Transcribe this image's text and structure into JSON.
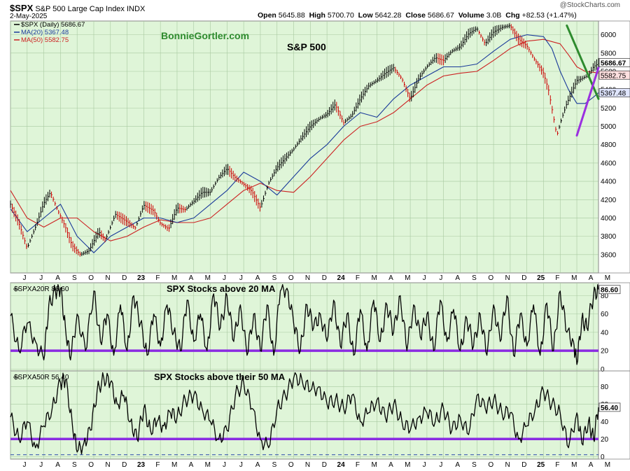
{
  "header": {
    "symbol": "$SPX",
    "name": "S&P 500 Large Cap Index",
    "exchange": "INDX",
    "date": "2-May-2025",
    "watermark": "@StockCharts.com",
    "ohlc": {
      "open_label": "Open",
      "open": "5645.88",
      "high_label": "High",
      "high": "5700.70",
      "low_label": "Low",
      "low": "5642.28",
      "close_label": "Close",
      "close": "5686.67",
      "volume_label": "Volume",
      "volume": "3.0B",
      "chg_label": "Chg",
      "chg": "+82.53 (+1.47%)"
    }
  },
  "colors": {
    "panel_bg": "#dff5d8",
    "grid": "#a8c9a0",
    "price": "#000000",
    "down_bar": "#cc0000",
    "ma20": "#1a3a9a",
    "ma50": "#cc2222",
    "threshold": "#8a2be2",
    "trend_down": "#2e8b2e",
    "trend_up": "#9b30e0",
    "brand": "#2e8b2e"
  },
  "chart_data": [
    {
      "type": "line",
      "panel": "price",
      "brand": "BonnieGortler.com",
      "title": "S&P 500",
      "legend": [
        {
          "label": "$SPX (Daily) 5686.67",
          "color": "#000000"
        },
        {
          "label": "MA(20) 5367.48",
          "color": "#1a3a9a"
        },
        {
          "label": "MA(50) 5582.75",
          "color": "#cc2222"
        }
      ],
      "legend_position": "top-left",
      "x_labels": [
        "J",
        "J",
        "A",
        "S",
        "O",
        "N",
        "D",
        "23",
        "F",
        "M",
        "A",
        "M",
        "J",
        "J",
        "A",
        "S",
        "O",
        "N",
        "D",
        "24",
        "F",
        "M",
        "A",
        "M",
        "J",
        "J",
        "A",
        "S",
        "O",
        "N",
        "D",
        "25",
        "F",
        "M",
        "A",
        "M"
      ],
      "x_range": [
        0,
        35.3
      ],
      "ylim": [
        3400,
        6150
      ],
      "y_ticks": [
        3600,
        3800,
        4000,
        4200,
        4400,
        4600,
        4800,
        5000,
        5200,
        5400,
        5600,
        5800,
        6000
      ],
      "grid": true,
      "price_tags": [
        {
          "label": "5686.67",
          "value": 5686.67
        },
        {
          "label": "5582.75",
          "value": 5582.75
        },
        {
          "label": "5367.48",
          "value": 5367.48
        }
      ],
      "price_series": {
        "name": "$SPX",
        "x": [
          0,
          0.5,
          1,
          1.5,
          2,
          2.4,
          2.8,
          3.3,
          3.7,
          4.2,
          4.7,
          5.3,
          5.7,
          6.3,
          7,
          7.5,
          8,
          8.6,
          9,
          9.5,
          10,
          10.5,
          11,
          11.5,
          12,
          12.5,
          13,
          13.5,
          14,
          14.5,
          15,
          15.5,
          16,
          16.5,
          17,
          17.5,
          18,
          18.6,
          19,
          19.5,
          20,
          20.5,
          21,
          21.5,
          22,
          22.5,
          23,
          23.5,
          24,
          24.5,
          25,
          25.5,
          26,
          26.5,
          27,
          27.5,
          28,
          28.5,
          29,
          29.5,
          30,
          30.5,
          31,
          31.4,
          32,
          32.3,
          32.8,
          33.1,
          33.4,
          33.7,
          34,
          34.3,
          34.7,
          35,
          35.3
        ],
        "values": [
          4150,
          3950,
          3670,
          3900,
          4160,
          4280,
          4100,
          3900,
          3700,
          3600,
          3640,
          3850,
          3760,
          4040,
          3960,
          3890,
          4140,
          4080,
          3940,
          3880,
          4110,
          4090,
          4180,
          4280,
          4280,
          4440,
          4540,
          4440,
          4370,
          4290,
          4110,
          4380,
          4550,
          4650,
          4750,
          4880,
          5000,
          5090,
          5130,
          5240,
          5040,
          5120,
          5300,
          5440,
          5500,
          5580,
          5640,
          5520,
          5300,
          5520,
          5650,
          5750,
          5720,
          5820,
          5870,
          6010,
          6070,
          5900,
          6030,
          6080,
          6100,
          5950,
          5880,
          5750,
          5580,
          5400,
          4900,
          5090,
          5250,
          5375,
          5500,
          5520,
          5560,
          5650,
          5686
        ]
      },
      "ma20_series": {
        "name": "MA(20)",
        "x": [
          0,
          1,
          2,
          3,
          4,
          5,
          6,
          7,
          8,
          9,
          10,
          11,
          12,
          13,
          14,
          15,
          16,
          17,
          18,
          19,
          20,
          21,
          22,
          23,
          24,
          25,
          26,
          27,
          28,
          29,
          30,
          31,
          32,
          32.5,
          33,
          33.5,
          34,
          34.5,
          35,
          35.3
        ],
        "values": [
          4100,
          3850,
          4000,
          4150,
          3800,
          3620,
          3800,
          3900,
          4000,
          4000,
          3950,
          4000,
          4150,
          4300,
          4500,
          4400,
          4250,
          4450,
          4650,
          4800,
          5000,
          5150,
          5100,
          5300,
          5450,
          5550,
          5650,
          5650,
          5680,
          5820,
          5950,
          6000,
          5980,
          5850,
          5600,
          5400,
          5250,
          5250,
          5320,
          5367
        ]
      },
      "ma50_series": {
        "name": "MA(50)",
        "x": [
          0,
          1,
          2,
          3,
          4,
          5,
          6,
          7,
          8,
          9,
          10,
          11,
          12,
          13,
          14,
          15,
          16,
          17,
          18,
          19,
          20,
          21,
          22,
          23,
          24,
          25,
          26,
          27,
          28,
          29,
          30,
          31,
          32,
          33,
          33.5,
          34,
          34.5,
          35,
          35.3
        ],
        "values": [
          4300,
          4000,
          3900,
          4000,
          4000,
          3850,
          3750,
          3800,
          3900,
          3980,
          3950,
          3950,
          4000,
          4150,
          4300,
          4380,
          4300,
          4280,
          4450,
          4650,
          4850,
          5000,
          5050,
          5150,
          5300,
          5450,
          5550,
          5580,
          5600,
          5720,
          5850,
          5930,
          5950,
          5900,
          5780,
          5650,
          5600,
          5590,
          5582
        ]
      },
      "trendlines": [
        {
          "name": "downtrend",
          "x": [
            33.4,
            35.3
          ],
          "values": [
            6100,
            5300
          ]
        },
        {
          "name": "uptrend",
          "x": [
            34.0,
            35.3
          ],
          "values": [
            4900,
            5640
          ]
        }
      ]
    },
    {
      "type": "line",
      "panel": "spxa20r",
      "title": "SPX Stocks above 20 MA",
      "legend_label": "$SPXA20R 86.60",
      "last_label": "86.60",
      "last_value": 86.6,
      "ylim": [
        -2,
        94
      ],
      "y_ticks": [
        0,
        20,
        40,
        60,
        80
      ],
      "threshold": 20,
      "x": [
        0,
        0.5,
        1,
        1.5,
        2,
        2.3,
        2.7,
        3,
        3.3,
        3.6,
        4,
        4.5,
        5,
        5.4,
        5.8,
        6.2,
        6.6,
        7,
        7.4,
        7.8,
        8.2,
        8.6,
        9,
        9.4,
        9.8,
        10.2,
        10.6,
        11,
        11.4,
        11.8,
        12.2,
        12.6,
        13,
        13.4,
        13.8,
        14.2,
        14.6,
        15,
        15.4,
        15.8,
        16.2,
        16.6,
        17,
        17.4,
        17.8,
        18.2,
        18.6,
        19,
        19.4,
        19.8,
        20.2,
        20.6,
        21,
        21.4,
        21.8,
        22.2,
        22.6,
        23,
        23.4,
        23.8,
        24.2,
        24.6,
        25,
        25.4,
        25.8,
        26.2,
        26.6,
        27,
        27.4,
        27.8,
        28.2,
        28.6,
        29,
        29.4,
        29.8,
        30.2,
        30.6,
        31,
        31.4,
        31.8,
        32.2,
        32.6,
        33,
        33.4,
        33.8,
        34,
        34.3,
        34.6,
        35,
        35.3
      ],
      "values": [
        58,
        20,
        50,
        30,
        10,
        70,
        85,
        88,
        45,
        10,
        60,
        20,
        85,
        30,
        60,
        15,
        70,
        20,
        80,
        50,
        15,
        60,
        25,
        70,
        40,
        20,
        75,
        30,
        60,
        20,
        82,
        45,
        80,
        30,
        70,
        15,
        60,
        20,
        70,
        15,
        85,
        88,
        50,
        20,
        70,
        45,
        60,
        30,
        75,
        25,
        60,
        15,
        65,
        20,
        75,
        30,
        70,
        40,
        80,
        20,
        70,
        35,
        60,
        20,
        75,
        30,
        65,
        20,
        55,
        25,
        60,
        15,
        70,
        30,
        80,
        15,
        60,
        25,
        70,
        15,
        72,
        20,
        85,
        40,
        30,
        5,
        55,
        45,
        80,
        86.6
      ]
    },
    {
      "type": "line",
      "panel": "spxa50r",
      "title": "SPX Stocks above their 50 MA",
      "legend_label": "$SPXA50R 56.40",
      "last_label": "56.40",
      "last_value": 56.4,
      "ylim": [
        -3,
        98
      ],
      "y_ticks": [
        0,
        20,
        40,
        60,
        80
      ],
      "threshold": 20,
      "zero_line": 2,
      "x_labels": [
        "J",
        "J",
        "A",
        "S",
        "O",
        "N",
        "D",
        "23",
        "F",
        "M",
        "A",
        "M",
        "J",
        "J",
        "A",
        "S",
        "O",
        "N",
        "D",
        "24",
        "F",
        "M",
        "A",
        "M",
        "J",
        "J",
        "A",
        "S",
        "O",
        "N",
        "D",
        "25",
        "F",
        "M",
        "A",
        "M"
      ],
      "x": [
        0,
        0.5,
        1,
        1.5,
        2,
        2.5,
        3,
        3.3,
        3.7,
        4,
        4.4,
        4.8,
        5.2,
        5.6,
        6,
        6.4,
        6.8,
        7.2,
        7.6,
        8,
        8.4,
        8.8,
        9.2,
        9.6,
        10,
        10.5,
        11,
        11.5,
        12,
        12.5,
        13,
        13.5,
        14,
        14.5,
        15,
        15.5,
        16,
        16.5,
        17,
        17.5,
        18,
        18.5,
        19,
        19.5,
        20,
        20.5,
        21,
        21.5,
        22,
        22.5,
        23,
        23.5,
        24,
        24.5,
        25,
        25.5,
        26,
        26.5,
        27,
        27.5,
        28,
        28.5,
        29,
        29.5,
        30,
        30.5,
        31,
        31.5,
        32,
        32.5,
        33,
        33.5,
        34,
        34.3,
        34.7,
        35,
        35.3
      ],
      "values": [
        45,
        20,
        40,
        10,
        35,
        55,
        85,
        88,
        40,
        5,
        15,
        30,
        75,
        90,
        85,
        60,
        70,
        40,
        20,
        55,
        30,
        40,
        35,
        50,
        45,
        65,
        70,
        55,
        40,
        20,
        30,
        70,
        85,
        55,
        20,
        10,
        55,
        70,
        90,
        88,
        75,
        80,
        60,
        65,
        55,
        70,
        40,
        50,
        65,
        45,
        60,
        40,
        30,
        45,
        50,
        40,
        55,
        30,
        45,
        25,
        70,
        55,
        65,
        50,
        50,
        20,
        35,
        55,
        75,
        60,
        50,
        10,
        50,
        15,
        40,
        20,
        56.4
      ]
    }
  ]
}
